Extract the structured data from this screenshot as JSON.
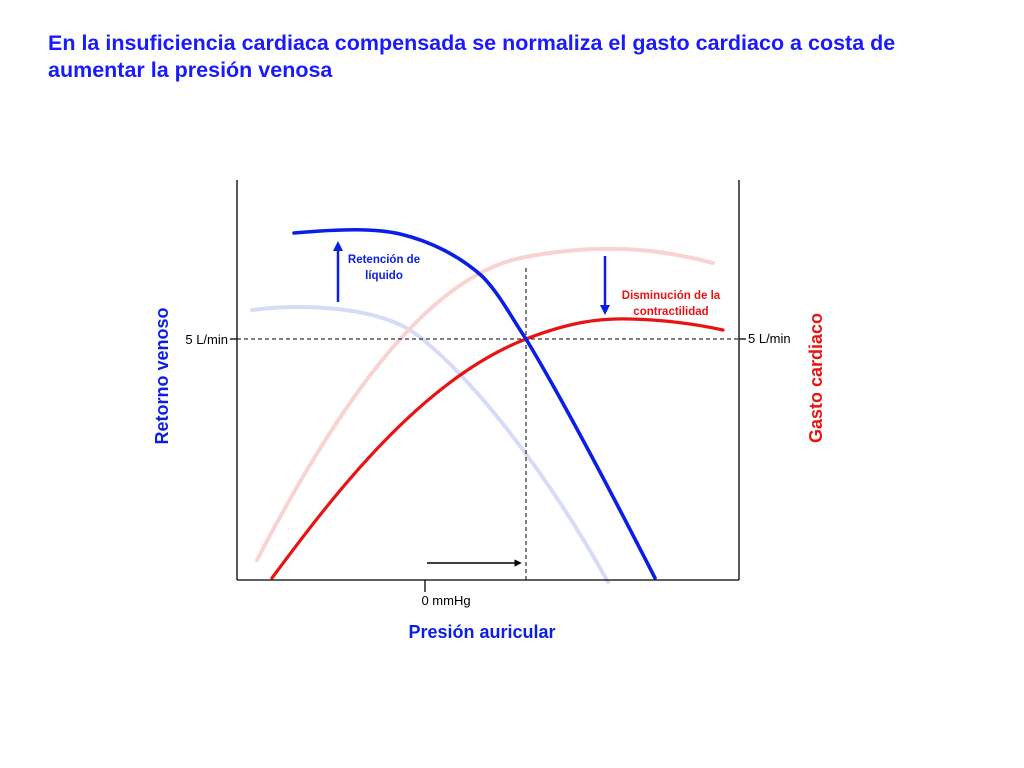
{
  "title": "En la insuficiencia cardiaca compensada se normaliza el gasto cardiaco a costa de aumentar la presión venosa",
  "left_axis_label": "Retorno venoso",
  "right_axis_label": "Gasto cardiaco",
  "x_axis_label": "Presión auricular",
  "x_tick_label": "0 mmHg",
  "left_tick_label": "5 L/min",
  "right_tick_label": "5 L/min",
  "annotation_blue": {
    "line1": "Retención de",
    "line2": "líquido"
  },
  "annotation_red": {
    "line1": "Disminución de la",
    "line2": "contractilidad"
  },
  "colors": {
    "venous_return": "#0a1ee6",
    "venous_return_faded": "#d6dcf7",
    "cardiac_output": "#e81414",
    "cardiac_output_faded": "#f9d2d2",
    "title": "#1a1aff"
  }
}
